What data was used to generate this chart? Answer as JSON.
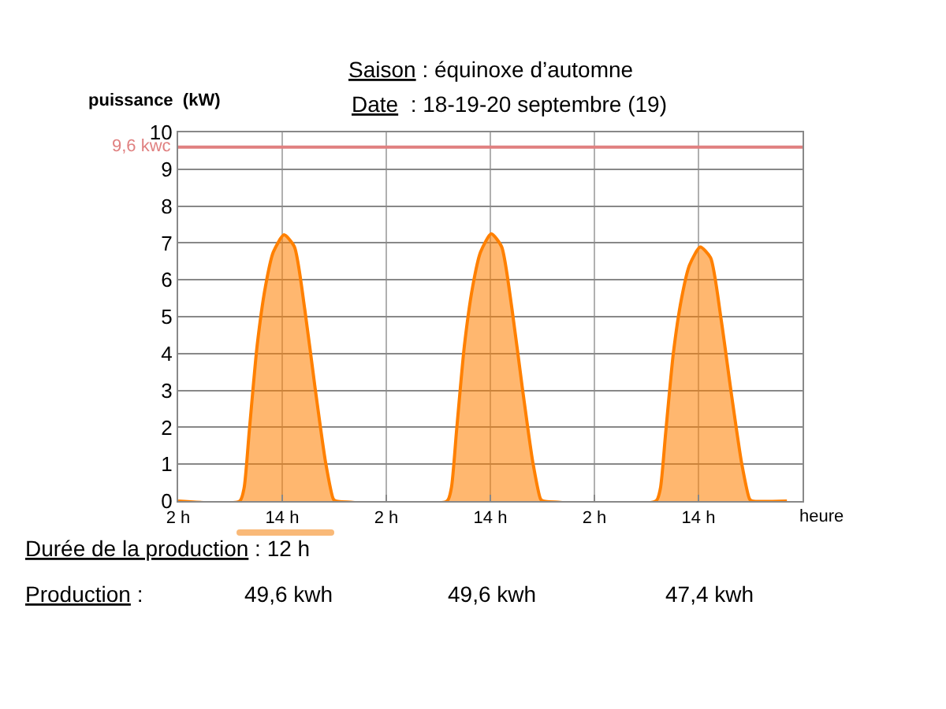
{
  "chart_data": {
    "type": "area",
    "title": "Saison : équinoxe d’automne",
    "subtitle": "Date  : 18-19-20 septembre (19)",
    "ylabel": "puissance  (kW)",
    "xlabel": "heure",
    "series": [
      {
        "color": "#ff8000",
        "x": [
          "--09-18T02:00",
          "--09-18T09:06",
          "--09-18T09:36",
          "--09-18T10:12",
          "--09-18T11:06",
          "--09-18T12:03",
          "--09-18T12:58",
          "--09-18T14:12",
          "--09-18T15:24",
          "--09-18T16:36",
          "--09-18T17:48",
          "--09-18T19:00",
          "--09-18T19:54",
          "--09-18T20:12",
          "--09-19T09:00",
          "--09-19T09:30",
          "--09-19T10:06",
          "--09-19T11:00",
          "--09-19T11:57",
          "--09-19T12:52",
          "--09-19T14:06",
          "--09-19T15:18",
          "--09-19T16:30",
          "--09-19T17:42",
          "--09-19T18:54",
          "--09-19T19:48",
          "--09-19T20:06",
          "--09-20T09:06",
          "--09-20T09:36",
          "--09-20T10:12",
          "--09-20T11:06",
          "--09-20T12:03",
          "--09-20T12:58",
          "--09-20T14:12",
          "--09-20T15:24",
          "--09-20T16:36",
          "--09-20T17:48",
          "--09-20T19:00",
          "--09-20T19:54",
          "--09-20T20:12",
          "--09-21T00:12"
        ],
        "values": [
          0,
          0,
          0.35,
          1.9,
          4.2,
          5.8,
          6.75,
          7.22,
          6.9,
          5.2,
          3.05,
          1.05,
          0.05,
          0,
          0,
          0.35,
          1.9,
          4.2,
          5.8,
          6.75,
          7.25,
          6.9,
          5.2,
          3.05,
          1.05,
          0.05,
          0,
          0,
          0.33,
          1.8,
          4.0,
          5.5,
          6.4,
          6.89,
          6.6,
          4.95,
          2.9,
          1.0,
          0.05,
          0,
          0
        ]
      }
    ],
    "xlim": [
      "--09-18T02:00",
      "--09-21T02:00"
    ],
    "xticks": [
      {
        "value": "--09-18T02:00",
        "label": "2 h"
      },
      {
        "value": "--09-18T14:00",
        "label": "14 h"
      },
      {
        "value": "--09-19T02:00",
        "label": "2 h"
      },
      {
        "value": "--09-19T14:00",
        "label": "14 h"
      },
      {
        "value": "--09-20T02:00",
        "label": "2 h"
      },
      {
        "value": "--09-20T14:00",
        "label": "14 h"
      }
    ],
    "ylim": [
      0,
      10
    ],
    "yticks": [
      0,
      1,
      2,
      3,
      4,
      5,
      6,
      7,
      8,
      9,
      10
    ],
    "ref_lines": [
      {
        "axis": "y",
        "value": 9.6,
        "label": "9,6 kwc",
        "color": "#e08080"
      }
    ],
    "grid": true,
    "legend": false,
    "annotations": [
      "Durée de la production : 12 h",
      "Production :",
      "49,6 kwh",
      "49,6 kwh",
      "47,4 kwh"
    ]
  }
}
